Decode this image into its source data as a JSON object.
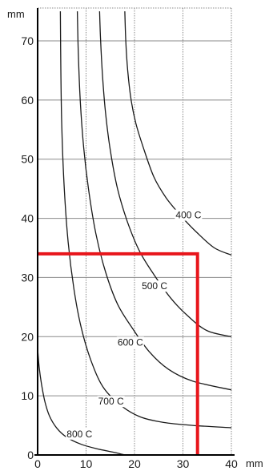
{
  "chart_data": {
    "type": "line",
    "x_unit": "mm",
    "y_unit": "mm",
    "xlim": [
      0,
      40
    ],
    "ylim": [
      0,
      75
    ],
    "x_ticks": [
      0,
      10,
      20,
      30,
      40
    ],
    "y_ticks": [
      0,
      10,
      20,
      30,
      40,
      50,
      60,
      70
    ],
    "x_tick_labels": [
      "0",
      "10",
      "20",
      "30",
      "40"
    ],
    "y_tick_labels": [
      "0",
      "10",
      "20",
      "30",
      "40",
      "50",
      "60",
      "70"
    ],
    "grid": true,
    "series": [
      {
        "name": "400 C",
        "x": [
          18,
          18.2,
          18.6,
          19.3,
          20.3,
          21.8,
          24,
          26.5,
          29.5,
          33,
          36.5,
          40
        ],
        "y": [
          75,
          70,
          65,
          60,
          56,
          52,
          47,
          43.5,
          40.5,
          37.5,
          35,
          33.8
        ]
      },
      {
        "name": "500 C",
        "x": [
          12.8,
          13,
          13.4,
          14,
          15,
          16.5,
          18.5,
          21,
          24,
          27.5,
          31,
          35,
          40
        ],
        "y": [
          75,
          70,
          64,
          58,
          51.5,
          45,
          39.5,
          34.5,
          30.5,
          26.5,
          23.5,
          21,
          20
        ]
      },
      {
        "name": "600 C",
        "x": [
          8.2,
          8.4,
          8.8,
          9.5,
          10.5,
          12,
          14,
          16.5,
          19.5,
          23,
          27,
          32,
          40
        ],
        "y": [
          75,
          68,
          60,
          52,
          45,
          37.5,
          31,
          25.5,
          21.5,
          17.5,
          14.5,
          12.5,
          11
        ]
      },
      {
        "name": "700 C",
        "x": [
          4.7,
          4.8,
          5,
          5.5,
          6.3,
          7.5,
          9,
          11,
          13.5,
          17,
          21,
          26,
          32,
          40
        ],
        "y": [
          75,
          65,
          55,
          45,
          36,
          28,
          21.5,
          16,
          11.5,
          8.5,
          6.5,
          5.5,
          5,
          4.6
        ]
      },
      {
        "name": "800 C",
        "x": [
          0,
          0.3,
          0.8,
          1.5,
          2.5,
          4,
          6,
          9,
          12.5,
          16,
          18
        ],
        "y": [
          18,
          15,
          12,
          9,
          6.5,
          4.5,
          3,
          1.8,
          1,
          0.4,
          0
        ]
      }
    ],
    "curve_labels": [
      {
        "text": "400 C",
        "x": 28.5,
        "y": 40
      },
      {
        "text": "500 C",
        "x": 21.5,
        "y": 28
      },
      {
        "text": "600 C",
        "x": 16.5,
        "y": 18.5
      },
      {
        "text": "700 C",
        "x": 12.5,
        "y": 8.5
      },
      {
        "text": "800 C",
        "x": 6,
        "y": 3
      }
    ],
    "highlight": {
      "color": "#e8151b",
      "points": [
        [
          0,
          34
        ],
        [
          33,
          34
        ],
        [
          33,
          0
        ]
      ]
    },
    "line_color": "#1a1a1a",
    "grid_color": "#8a8a8a"
  }
}
